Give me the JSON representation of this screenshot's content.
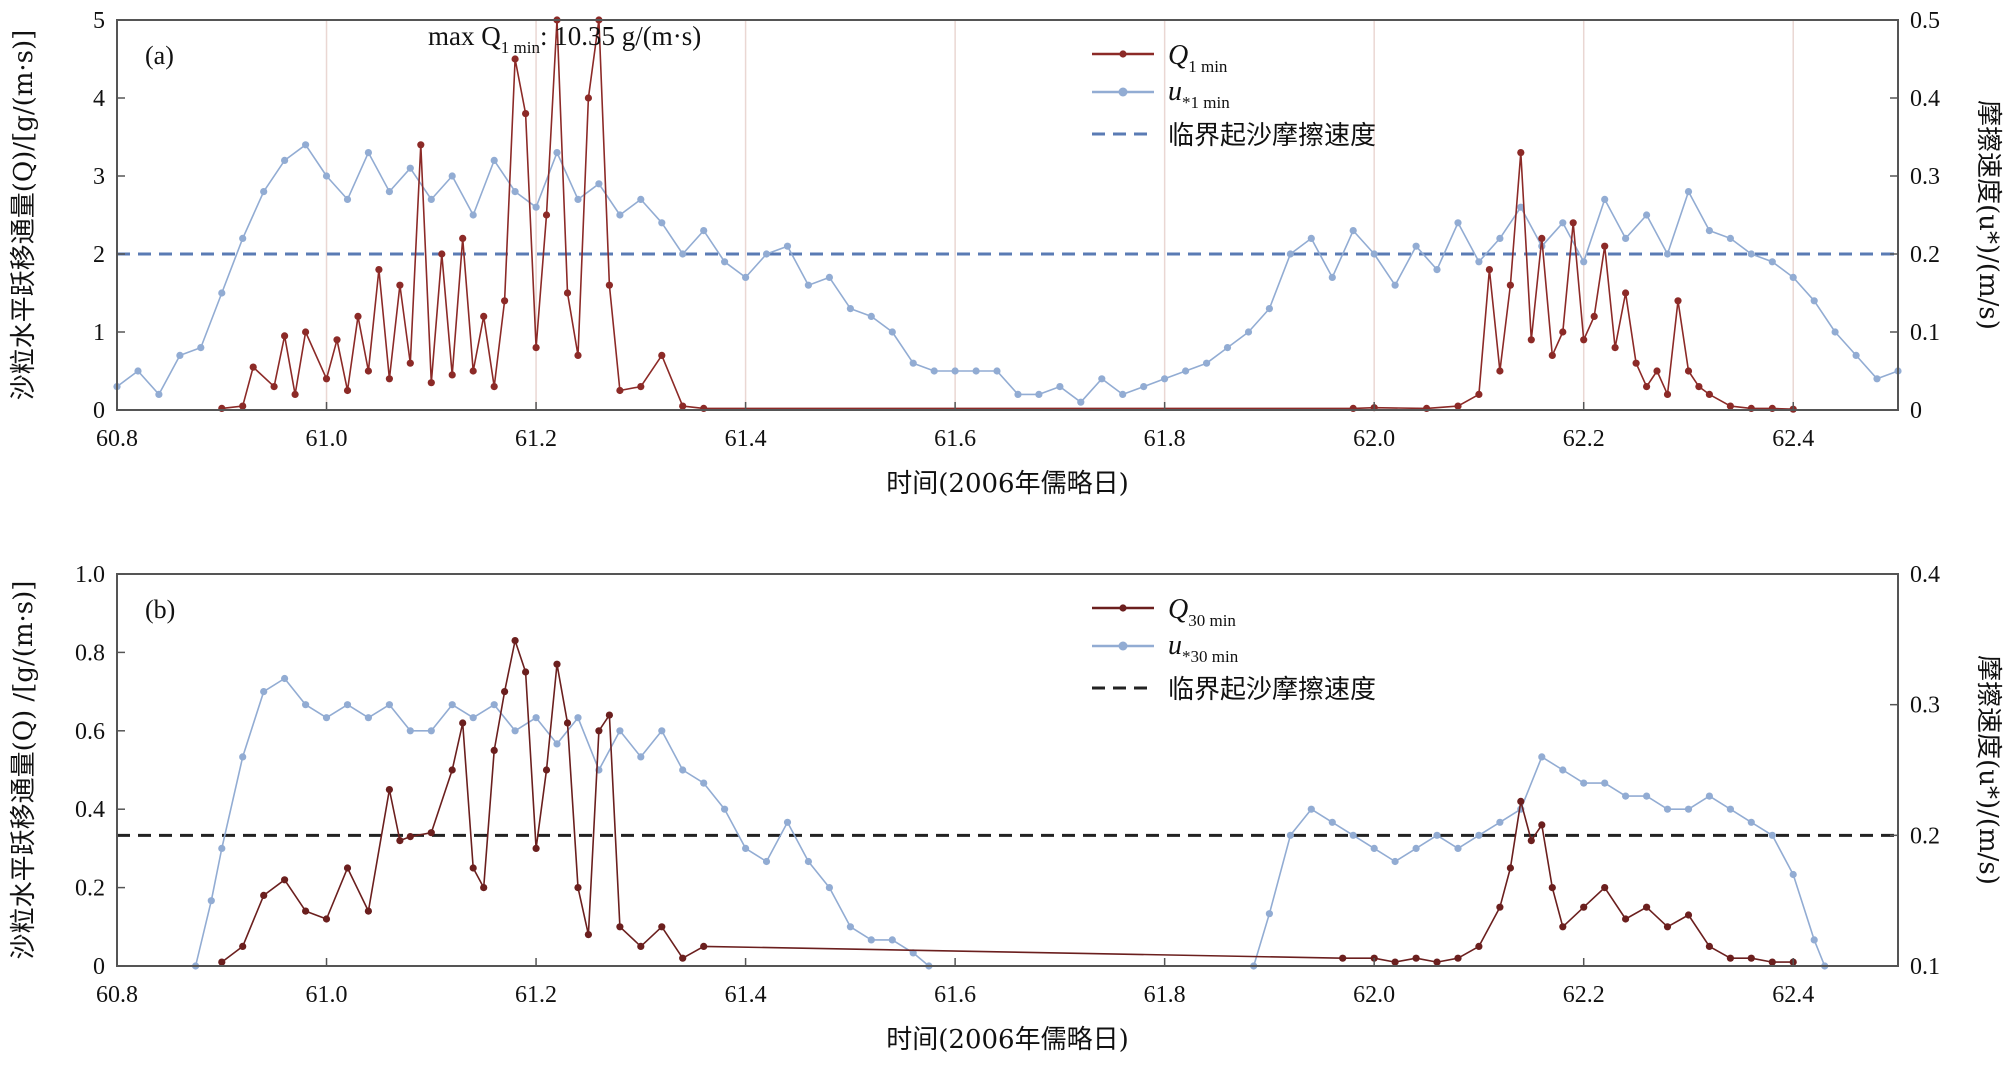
{
  "chart_data": [
    {
      "type": "line",
      "panel_label": "(a)",
      "xlabel": "时间(2006年儒略日)",
      "ylabel": "沙粒水平跃移通量(Q)/[g/(m·s)]",
      "y2label": "摩擦速度(u*)/(m/s)",
      "xlim": [
        60.8,
        62.5
      ],
      "ylim": [
        0,
        5
      ],
      "y2lim": [
        0,
        0.5
      ],
      "x_ticks": [
        "60.8",
        "61.0",
        "61.2",
        "61.4",
        "61.6",
        "61.8",
        "62.0",
        "62.2",
        "62.4"
      ],
      "y_ticks": [
        "0",
        "1",
        "2",
        "3",
        "4",
        "5"
      ],
      "y2_ticks": [
        "0",
        "0.1",
        "0.2",
        "0.3",
        "0.4",
        "0.5"
      ],
      "vertical_grid": [
        61.0,
        61.2,
        61.4,
        61.6,
        61.8,
        62.0,
        62.2,
        62.4
      ],
      "annotation": {
        "prefix": "max ",
        "base": "Q",
        "sub": "1 min",
        "suffix": ": 10.35 g/(m·s)"
      },
      "legend": [
        {
          "base": "Q",
          "sub": "1 min"
        },
        {
          "base": "u",
          "sub": "*1 min"
        },
        {
          "text": "临界起沙摩擦速度"
        }
      ],
      "threshold": {
        "y2": 0.2,
        "color": "#5a7bb4"
      },
      "series": [
        {
          "axis": "y2",
          "color": "#92acd3",
          "x": [
            60.8,
            60.82,
            60.84,
            60.86,
            60.88,
            60.9,
            60.92,
            60.94,
            60.96,
            60.98,
            61.0,
            61.02,
            61.04,
            61.06,
            61.08,
            61.1,
            61.12,
            61.14,
            61.16,
            61.18,
            61.2,
            61.22,
            61.24,
            61.26,
            61.28,
            61.3,
            61.32,
            61.34,
            61.36,
            61.38,
            61.4,
            61.42,
            61.44,
            61.46,
            61.48,
            61.5,
            61.52,
            61.54,
            61.56,
            61.58,
            61.6,
            61.62,
            61.64,
            61.66,
            61.68,
            61.7,
            61.72,
            61.74,
            61.76,
            61.78,
            61.8,
            61.82,
            61.84,
            61.86,
            61.88,
            61.9,
            61.92,
            61.94,
            61.96,
            61.98,
            62.0,
            62.02,
            62.04,
            62.06,
            62.08,
            62.1,
            62.12,
            62.14,
            62.16,
            62.18,
            62.2,
            62.22,
            62.24,
            62.26,
            62.28,
            62.3,
            62.32,
            62.34,
            62.36,
            62.38,
            62.4,
            62.42,
            62.44,
            62.46,
            62.48,
            62.5
          ],
          "values": [
            0.03,
            0.05,
            0.02,
            0.07,
            0.08,
            0.15,
            0.22,
            0.28,
            0.32,
            0.34,
            0.3,
            0.27,
            0.33,
            0.28,
            0.31,
            0.27,
            0.3,
            0.25,
            0.32,
            0.28,
            0.26,
            0.33,
            0.27,
            0.29,
            0.25,
            0.27,
            0.24,
            0.2,
            0.23,
            0.19,
            0.17,
            0.2,
            0.21,
            0.16,
            0.17,
            0.13,
            0.12,
            0.1,
            0.06,
            0.05,
            0.05,
            0.05,
            0.05,
            0.02,
            0.02,
            0.03,
            0.01,
            0.04,
            0.02,
            0.03,
            0.04,
            0.05,
            0.06,
            0.08,
            0.1,
            0.13,
            0.2,
            0.22,
            0.17,
            0.23,
            0.2,
            0.16,
            0.21,
            0.18,
            0.24,
            0.19,
            0.22,
            0.26,
            0.21,
            0.24,
            0.19,
            0.27,
            0.22,
            0.25,
            0.2,
            0.28,
            0.23,
            0.22,
            0.2,
            0.19,
            0.17,
            0.14,
            0.1,
            0.07,
            0.04,
            0.05
          ]
        },
        {
          "axis": "y",
          "color": "#8c2a27",
          "x": [
            60.9,
            60.92,
            60.93,
            60.95,
            60.96,
            60.97,
            60.98,
            61.0,
            61.01,
            61.02,
            61.03,
            61.04,
            61.05,
            61.06,
            61.07,
            61.08,
            61.09,
            61.1,
            61.11,
            61.12,
            61.13,
            61.14,
            61.15,
            61.16,
            61.17,
            61.18,
            61.19,
            61.2,
            61.21,
            61.22,
            61.23,
            61.24,
            61.25,
            61.26,
            61.27,
            61.28,
            61.3,
            61.32,
            61.34,
            61.36,
            61.98,
            62.0,
            62.05,
            62.08,
            62.1,
            62.11,
            62.12,
            62.13,
            62.14,
            62.15,
            62.16,
            62.17,
            62.18,
            62.19,
            62.2,
            62.21,
            62.22,
            62.23,
            62.24,
            62.25,
            62.26,
            62.27,
            62.28,
            62.29,
            62.3,
            62.31,
            62.32,
            62.34,
            62.36,
            62.38,
            62.4
          ],
          "values": [
            0.02,
            0.05,
            0.55,
            0.3,
            0.95,
            0.2,
            1.0,
            0.4,
            0.9,
            0.25,
            1.2,
            0.5,
            1.8,
            0.4,
            1.6,
            0.6,
            3.4,
            0.35,
            2.0,
            0.45,
            2.2,
            0.5,
            1.2,
            0.3,
            1.4,
            4.5,
            3.8,
            0.8,
            2.5,
            5.0,
            1.5,
            0.7,
            4.0,
            5.0,
            1.6,
            0.25,
            0.3,
            0.7,
            0.05,
            0.02,
            0.02,
            0.03,
            0.02,
            0.05,
            0.2,
            1.8,
            0.5,
            1.6,
            3.3,
            0.9,
            2.2,
            0.7,
            1.0,
            2.4,
            0.9,
            1.2,
            2.1,
            0.8,
            1.5,
            0.6,
            0.3,
            0.5,
            0.2,
            1.4,
            0.5,
            0.3,
            0.2,
            0.05,
            0.02,
            0.02,
            0.01
          ]
        }
      ]
    },
    {
      "type": "line",
      "panel_label": "(b)",
      "xlabel": "时间(2006年儒略日)",
      "ylabel": "沙粒水平跃移通量(Q) /[g/(m·s)]",
      "y2label": "摩擦速度(u*)/(m/s)",
      "xlim": [
        60.8,
        62.5
      ],
      "ylim": [
        0,
        1.0
      ],
      "y2lim": [
        0.1,
        0.4
      ],
      "x_ticks": [
        "60.8",
        "61.0",
        "61.2",
        "61.4",
        "61.6",
        "61.8",
        "62.0",
        "62.2",
        "62.4"
      ],
      "y_ticks": [
        "0",
        "0.2",
        "0.4",
        "0.6",
        "0.8",
        "1.0"
      ],
      "y2_ticks": [
        "0.1",
        "0.2",
        "0.3",
        "0.4"
      ],
      "legend": [
        {
          "base": "Q",
          "sub": "30 min"
        },
        {
          "base": "u",
          "sub": "*30 min"
        },
        {
          "text": "临界起沙摩擦速度"
        }
      ],
      "threshold": {
        "y2": 0.2,
        "color": "#222222"
      },
      "series": [
        {
          "axis": "y2",
          "color": "#92acd3",
          "x": [
            60.875,
            60.89,
            60.9,
            60.92,
            60.94,
            60.96,
            60.98,
            61.0,
            61.02,
            61.04,
            61.06,
            61.08,
            61.1,
            61.12,
            61.14,
            61.16,
            61.18,
            61.2,
            61.22,
            61.24,
            61.26,
            61.28,
            61.3,
            61.32,
            61.34,
            61.36,
            61.38,
            61.4,
            61.42,
            61.44,
            61.46,
            61.48,
            61.5,
            61.52,
            61.54,
            61.56,
            61.575,
            61.885,
            61.9,
            61.92,
            61.94,
            61.96,
            61.98,
            62.0,
            62.02,
            62.04,
            62.06,
            62.08,
            62.1,
            62.12,
            62.14,
            62.16,
            62.18,
            62.2,
            62.22,
            62.24,
            62.26,
            62.28,
            62.3,
            62.32,
            62.34,
            62.36,
            62.38,
            62.4,
            62.42,
            62.43
          ],
          "values": [
            0.1,
            0.15,
            0.19,
            0.26,
            0.31,
            0.32,
            0.3,
            0.29,
            0.3,
            0.29,
            0.3,
            0.28,
            0.28,
            0.3,
            0.29,
            0.3,
            0.28,
            0.29,
            0.27,
            0.29,
            0.25,
            0.28,
            0.26,
            0.28,
            0.25,
            0.24,
            0.22,
            0.19,
            0.18,
            0.21,
            0.18,
            0.16,
            0.13,
            0.12,
            0.12,
            0.11,
            0.1,
            0.1,
            0.14,
            0.2,
            0.22,
            0.21,
            0.2,
            0.19,
            0.18,
            0.19,
            0.2,
            0.19,
            0.2,
            0.21,
            0.22,
            0.26,
            0.25,
            0.24,
            0.24,
            0.23,
            0.23,
            0.22,
            0.22,
            0.23,
            0.22,
            0.21,
            0.2,
            0.17,
            0.12,
            0.1
          ]
        },
        {
          "axis": "y",
          "color": "#6b1f1e",
          "x": [
            60.9,
            60.92,
            60.94,
            60.96,
            60.98,
            61.0,
            61.02,
            61.04,
            61.06,
            61.07,
            61.08,
            61.1,
            61.12,
            61.13,
            61.14,
            61.15,
            61.16,
            61.17,
            61.18,
            61.19,
            61.2,
            61.21,
            61.22,
            61.23,
            61.24,
            61.25,
            61.26,
            61.27,
            61.28,
            61.3,
            61.32,
            61.34,
            61.36,
            61.97,
            62.0,
            62.02,
            62.04,
            62.06,
            62.08,
            62.1,
            62.12,
            62.13,
            62.14,
            62.15,
            62.16,
            62.17,
            62.18,
            62.2,
            62.22,
            62.24,
            62.26,
            62.28,
            62.3,
            62.32,
            62.34,
            62.36,
            62.38,
            62.4
          ],
          "values": [
            0.01,
            0.05,
            0.18,
            0.22,
            0.14,
            0.12,
            0.25,
            0.14,
            0.45,
            0.32,
            0.33,
            0.34,
            0.5,
            0.62,
            0.25,
            0.2,
            0.55,
            0.7,
            0.83,
            0.75,
            0.3,
            0.5,
            0.77,
            0.62,
            0.2,
            0.08,
            0.6,
            0.64,
            0.1,
            0.05,
            0.1,
            0.02,
            0.05,
            0.02,
            0.02,
            0.01,
            0.02,
            0.01,
            0.02,
            0.05,
            0.15,
            0.25,
            0.42,
            0.32,
            0.36,
            0.2,
            0.1,
            0.15,
            0.2,
            0.12,
            0.15,
            0.1,
            0.13,
            0.05,
            0.02,
            0.02,
            0.01,
            0.01
          ]
        }
      ]
    }
  ]
}
